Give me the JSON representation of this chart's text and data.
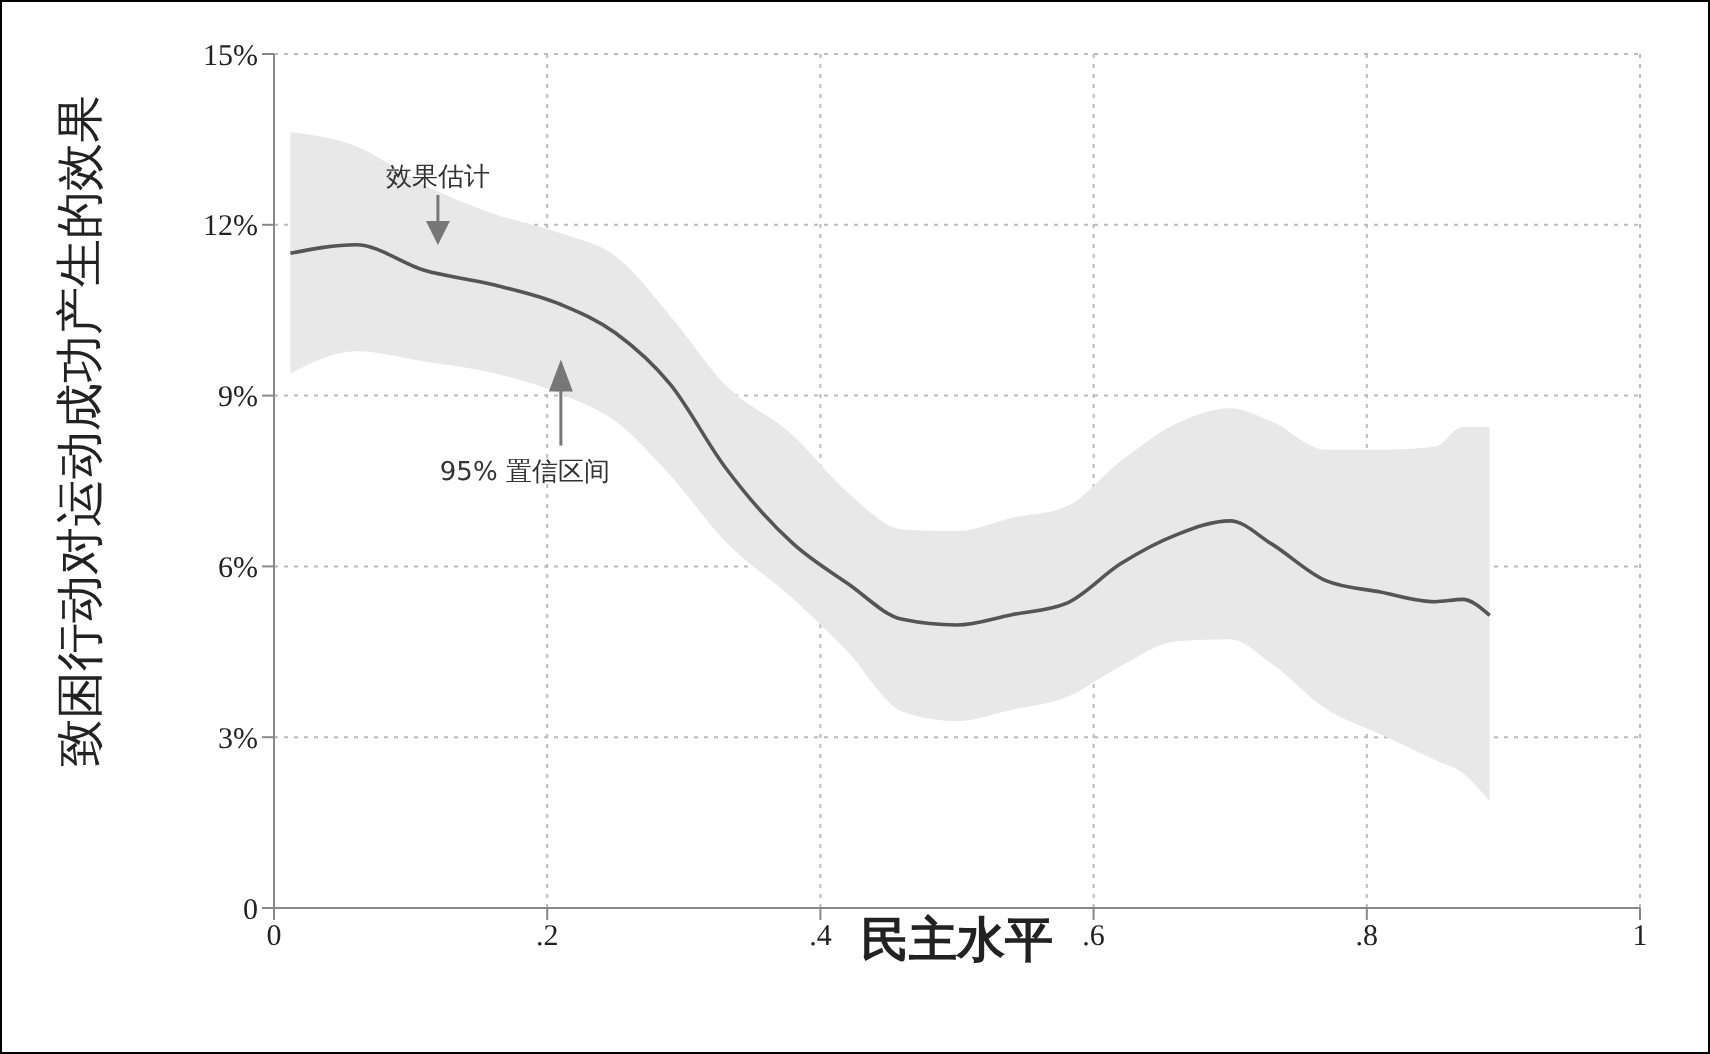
{
  "chart_data": {
    "type": "line",
    "xlabel": "民主水平",
    "ylabel": "致困行动对运动成功产生的效果",
    "x": [
      0.012,
      0.06,
      0.11,
      0.16,
      0.21,
      0.25,
      0.29,
      0.33,
      0.38,
      0.42,
      0.46,
      0.5,
      0.54,
      0.58,
      0.62,
      0.66,
      0.7,
      0.73,
      0.77,
      0.81,
      0.85,
      0.87,
      0.89
    ],
    "series": [
      {
        "color": "#555555",
        "values": [
          11.5,
          11.65,
          11.2,
          10.95,
          10.6,
          10.1,
          9.2,
          7.75,
          6.4,
          5.7,
          5.07,
          4.97,
          5.15,
          5.35,
          6.05,
          6.55,
          6.8,
          6.4,
          5.75,
          5.55,
          5.38,
          5.42,
          5.14
        ],
        "lower": [
          9.39,
          9.78,
          9.6,
          9.4,
          9.03,
          8.55,
          7.6,
          6.45,
          5.43,
          4.5,
          3.45,
          3.28,
          3.48,
          3.7,
          4.25,
          4.68,
          4.72,
          4.3,
          3.5,
          3.05,
          2.6,
          2.37,
          1.87
        ],
        "upper": [
          13.63,
          13.38,
          12.7,
          12.2,
          11.85,
          11.45,
          10.4,
          9.2,
          8.3,
          7.3,
          6.65,
          6.62,
          6.85,
          7.05,
          7.85,
          8.5,
          8.78,
          8.55,
          8.05,
          8.05,
          8.1,
          8.45,
          8.45
        ]
      }
    ],
    "xlim": [
      0,
      1
    ],
    "xticks": [
      0,
      {
        "value": 0.2,
        "label": ".2"
      },
      {
        "value": 0.4,
        "label": ".4"
      },
      {
        "value": 0.6,
        "label": ".6"
      },
      {
        "value": 0.8,
        "label": ".8"
      },
      1
    ],
    "ylim": [
      0,
      15
    ],
    "yticks": [
      0,
      {
        "value": 3,
        "label": "3%"
      },
      {
        "value": 6,
        "label": "6%"
      },
      {
        "value": 9,
        "label": "9%"
      },
      {
        "value": 12,
        "label": "12%"
      },
      {
        "value": 15,
        "label": "15%"
      }
    ],
    "annotations": [
      {
        "text": "效果估计",
        "x": 0.12,
        "y": 11.2
      },
      {
        "text": "95% 置信区间",
        "x": 0.21,
        "y": 9.0
      }
    ],
    "grid": true,
    "legend": false,
    "marker": "none",
    "line_style": "solid"
  }
}
